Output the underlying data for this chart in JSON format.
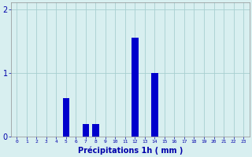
{
  "hours": [
    0,
    1,
    2,
    3,
    4,
    5,
    6,
    7,
    8,
    9,
    10,
    11,
    12,
    13,
    14,
    15,
    16,
    17,
    18,
    19,
    20,
    21,
    22,
    23
  ],
  "values": [
    0,
    0,
    0,
    0,
    0,
    0.6,
    0,
    0.2,
    0.2,
    0,
    0,
    0,
    1.55,
    0,
    1.0,
    0,
    0,
    0,
    0,
    0,
    0,
    0,
    0,
    0
  ],
  "bar_color": "#0000cc",
  "bg_color": "#d8eff0",
  "grid_color": "#a8cfd0",
  "axis_label_color": "#0000aa",
  "tick_color": "#0000aa",
  "xlabel": "Précipitations 1h ( mm )",
  "ylim": [
    0,
    2.1
  ],
  "yticks": [
    0,
    1,
    2
  ],
  "bar_width": 0.7
}
